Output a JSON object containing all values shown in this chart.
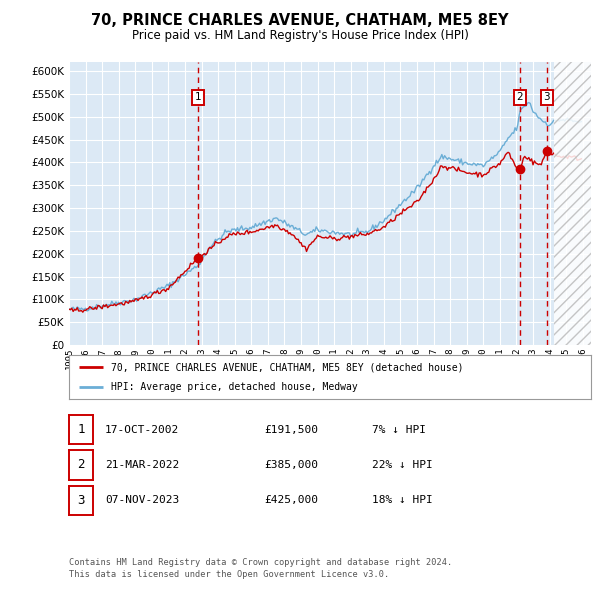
{
  "title": "70, PRINCE CHARLES AVENUE, CHATHAM, ME5 8EY",
  "subtitle": "Price paid vs. HM Land Registry's House Price Index (HPI)",
  "ylim": [
    0,
    620000
  ],
  "bg_color": "#dce9f5",
  "grid_color": "#ffffff",
  "hpi_line_color": "#6baed6",
  "price_line_color": "#cc0000",
  "marker_color": "#cc0000",
  "dashed_line_color": "#cc0000",
  "transaction_dates": [
    2002.792,
    2022.208,
    2023.833
  ],
  "transaction_prices": [
    191500,
    385000,
    425000
  ],
  "transaction_labels": [
    "1",
    "2",
    "3"
  ],
  "future_start": 2024.25,
  "xlim_left": 1995.0,
  "xlim_right": 2026.5,
  "legend_items": [
    "70, PRINCE CHARLES AVENUE, CHATHAM, ME5 8EY (detached house)",
    "HPI: Average price, detached house, Medway"
  ],
  "table_rows": [
    {
      "num": "1",
      "date": "17-OCT-2002",
      "price": "£191,500",
      "note": "7% ↓ HPI"
    },
    {
      "num": "2",
      "date": "21-MAR-2022",
      "price": "£385,000",
      "note": "22% ↓ HPI"
    },
    {
      "num": "3",
      "date": "07-NOV-2023",
      "price": "£425,000",
      "note": "18% ↓ HPI"
    }
  ],
  "footer": "Contains HM Land Registry data © Crown copyright and database right 2024.\nThis data is licensed under the Open Government Licence v3.0."
}
